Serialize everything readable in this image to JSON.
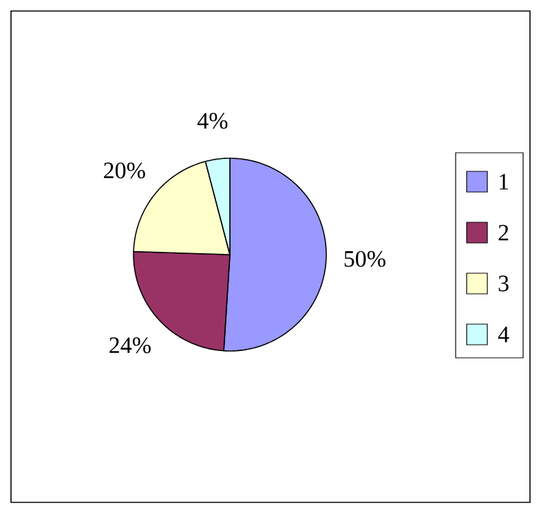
{
  "chart_data": {
    "type": "pie",
    "categories": [
      "1",
      "2",
      "3",
      "4"
    ],
    "values": [
      50,
      24,
      20,
      4
    ],
    "value_labels": [
      "50%",
      "24%",
      "20%",
      "4%"
    ],
    "colors": [
      "#9999ff",
      "#993366",
      "#ffffcc",
      "#ccffff"
    ],
    "legend": "right"
  }
}
